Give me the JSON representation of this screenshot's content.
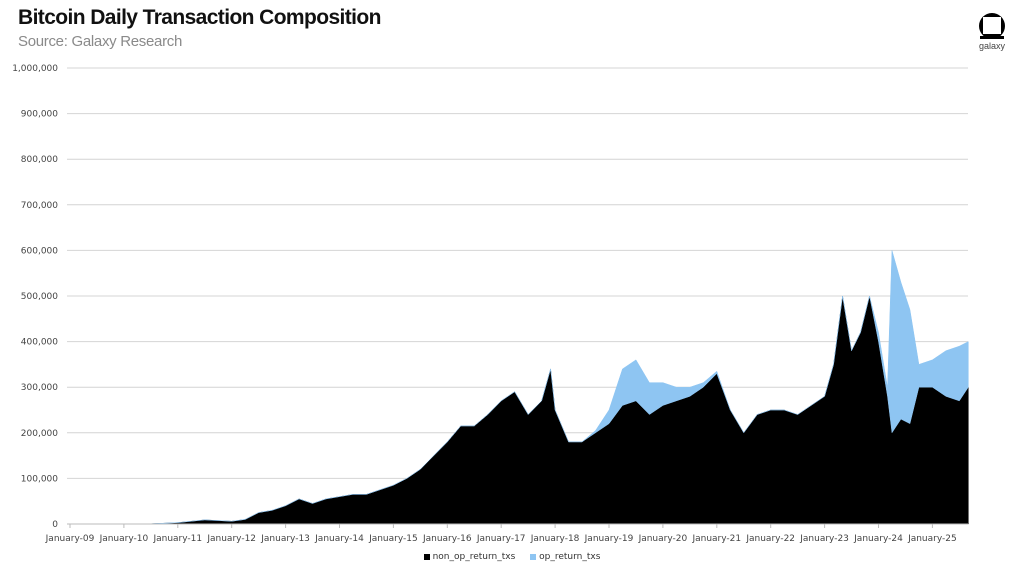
{
  "chart_data": {
    "type": "area",
    "stacked": true,
    "title": "Bitcoin Daily Transaction Composition",
    "subtitle": "Source: Galaxy Research",
    "xlabel": "",
    "ylabel": "",
    "ylim": [
      0,
      1000000
    ],
    "grid": true,
    "legend_position": "bottom",
    "y_ticks": [
      "0",
      "100,000",
      "200,000",
      "300,000",
      "400,000",
      "500,000",
      "600,000",
      "700,000",
      "800,000",
      "900,000",
      "1,000,000"
    ],
    "x_ticks": [
      "January-09",
      "January-10",
      "January-11",
      "January-12",
      "January-13",
      "January-14",
      "January-15",
      "January-16",
      "January-17",
      "January-18",
      "January-19",
      "January-20",
      "January-21",
      "January-22",
      "January-23",
      "January-24",
      "January-25"
    ],
    "x": [
      "2009-01",
      "2010-01",
      "2010-07",
      "2011-01",
      "2011-04",
      "2011-07",
      "2012-01",
      "2012-04",
      "2012-07",
      "2012-10",
      "2013-01",
      "2013-04",
      "2013-07",
      "2013-10",
      "2014-01",
      "2014-04",
      "2014-07",
      "2014-10",
      "2015-01",
      "2015-04",
      "2015-07",
      "2015-10",
      "2016-01",
      "2016-04",
      "2016-07",
      "2016-10",
      "2017-01",
      "2017-04",
      "2017-07",
      "2017-10",
      "2017-12",
      "2018-01",
      "2018-04",
      "2018-07",
      "2018-10",
      "2019-01",
      "2019-04",
      "2019-07",
      "2019-10",
      "2020-01",
      "2020-04",
      "2020-07",
      "2020-10",
      "2021-01",
      "2021-04",
      "2021-07",
      "2021-10",
      "2022-01",
      "2022-04",
      "2022-07",
      "2022-10",
      "2023-01",
      "2023-03",
      "2023-05",
      "2023-07",
      "2023-09",
      "2023-11",
      "2024-01",
      "2024-03",
      "2024-04",
      "2024-06",
      "2024-08",
      "2024-10",
      "2025-01",
      "2025-04",
      "2025-07",
      "2025-09"
    ],
    "series": [
      {
        "name": "non_op_return_txs",
        "color": "#000000",
        "values": [
          0,
          200,
          500,
          3000,
          6000,
          9000,
          6000,
          10000,
          25000,
          30000,
          40000,
          55000,
          45000,
          55000,
          60000,
          65000,
          65000,
          75000,
          85000,
          100000,
          120000,
          150000,
          180000,
          215000,
          215000,
          240000,
          270000,
          290000,
          240000,
          270000,
          340000,
          250000,
          180000,
          180000,
          200000,
          220000,
          260000,
          270000,
          240000,
          260000,
          270000,
          280000,
          300000,
          330000,
          250000,
          200000,
          240000,
          250000,
          250000,
          240000,
          260000,
          280000,
          350000,
          500000,
          380000,
          420000,
          500000,
          400000,
          280000,
          200000,
          230000,
          220000,
          300000,
          300000,
          280000,
          270000,
          300000
        ]
      },
      {
        "name": "op_return_txs",
        "color": "#8ec5f2",
        "values": [
          0,
          0,
          0,
          0,
          0,
          0,
          0,
          0,
          0,
          0,
          0,
          0,
          0,
          0,
          0,
          0,
          0,
          0,
          0,
          0,
          0,
          0,
          0,
          0,
          0,
          0,
          0,
          0,
          0,
          0,
          0,
          0,
          0,
          0,
          5000,
          30000,
          80000,
          90000,
          70000,
          50000,
          30000,
          20000,
          10000,
          5000,
          0,
          0,
          0,
          0,
          0,
          0,
          0,
          0,
          0,
          0,
          0,
          0,
          0,
          20000,
          20000,
          400000,
          300000,
          250000,
          50000,
          60000,
          100000,
          120000,
          100000
        ]
      }
    ]
  },
  "logo": {
    "text": "galaxy"
  }
}
